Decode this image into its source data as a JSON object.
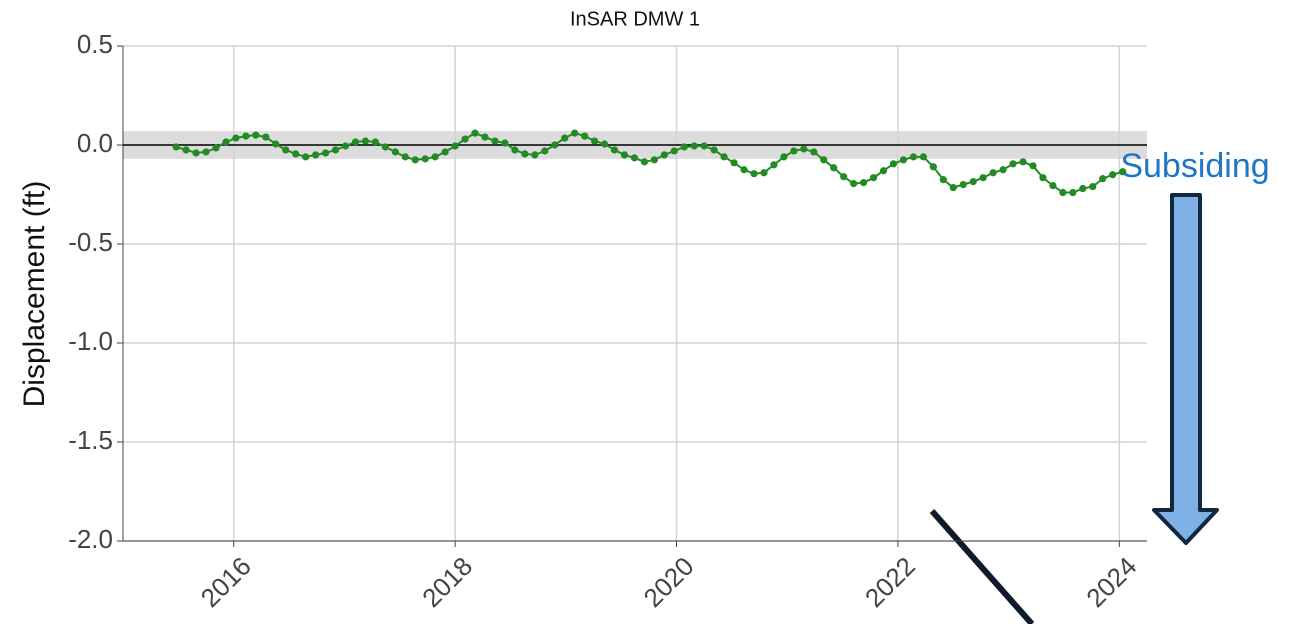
{
  "chart_data": {
    "type": "line",
    "title": "InSAR DMW 1",
    "y_label": "Displacement (ft)",
    "annotation": "Subsiding",
    "x": [
      2015.48,
      2015.57,
      2015.66,
      2015.75,
      2015.84,
      2015.93,
      2016.02,
      2016.11,
      2016.2,
      2016.29,
      2016.38,
      2016.47,
      2016.56,
      2016.65,
      2016.74,
      2016.83,
      2016.92,
      2017.01,
      2017.1,
      2017.19,
      2017.28,
      2017.37,
      2017.46,
      2017.55,
      2017.64,
      2017.73,
      2017.82,
      2017.91,
      2018.0,
      2018.09,
      2018.18,
      2018.27,
      2018.36,
      2018.45,
      2018.54,
      2018.63,
      2018.72,
      2018.81,
      2018.9,
      2018.99,
      2019.08,
      2019.17,
      2019.26,
      2019.35,
      2019.44,
      2019.53,
      2019.62,
      2019.71,
      2019.8,
      2019.89,
      2019.98,
      2020.07,
      2020.16,
      2020.25,
      2020.34,
      2020.43,
      2020.52,
      2020.61,
      2020.7,
      2020.79,
      2020.88,
      2020.97,
      2021.06,
      2021.15,
      2021.24,
      2021.33,
      2021.42,
      2021.51,
      2021.6,
      2021.69,
      2021.78,
      2021.87,
      2021.96,
      2022.05,
      2022.14,
      2022.23,
      2022.32,
      2022.41,
      2022.5,
      2022.59,
      2022.68,
      2022.77,
      2022.86,
      2022.95,
      2023.04,
      2023.13,
      2023.22,
      2023.31,
      2023.4,
      2023.49,
      2023.58,
      2023.67,
      2023.76,
      2023.85,
      2023.94,
      2024.03
    ],
    "values": [
      -0.01,
      -0.025,
      -0.04,
      -0.035,
      -0.015,
      0.015,
      0.035,
      0.045,
      0.05,
      0.04,
      0.005,
      -0.025,
      -0.045,
      -0.06,
      -0.05,
      -0.04,
      -0.025,
      -0.005,
      0.015,
      0.02,
      0.015,
      -0.01,
      -0.035,
      -0.06,
      -0.075,
      -0.07,
      -0.06,
      -0.035,
      -0.005,
      0.03,
      0.06,
      0.04,
      0.02,
      0.01,
      -0.025,
      -0.045,
      -0.05,
      -0.03,
      0.0,
      0.035,
      0.06,
      0.045,
      0.02,
      0.005,
      -0.025,
      -0.05,
      -0.065,
      -0.085,
      -0.075,
      -0.05,
      -0.03,
      -0.01,
      -0.005,
      -0.005,
      -0.025,
      -0.06,
      -0.09,
      -0.125,
      -0.145,
      -0.14,
      -0.1,
      -0.06,
      -0.03,
      -0.02,
      -0.035,
      -0.075,
      -0.115,
      -0.16,
      -0.195,
      -0.19,
      -0.165,
      -0.13,
      -0.095,
      -0.075,
      -0.06,
      -0.06,
      -0.11,
      -0.175,
      -0.215,
      -0.2,
      -0.185,
      -0.165,
      -0.14,
      -0.125,
      -0.095,
      -0.085,
      -0.105,
      -0.165,
      -0.205,
      -0.24,
      -0.24,
      -0.22,
      -0.21,
      -0.17,
      -0.15,
      -0.135
    ],
    "color": "#238b23",
    "reference_line": 0,
    "reference_band": [
      -0.07,
      0.07
    ],
    "xlim": [
      2015.0,
      2024.25
    ],
    "xticks": [
      2016,
      2018,
      2020,
      2022,
      2024
    ],
    "ylim": [
      -2.0,
      0.5
    ],
    "yticks": [
      {
        "value": -2,
        "label": "-2.0"
      },
      -1.5,
      {
        "value": -1,
        "label": "-1.0"
      },
      -0.5,
      {
        "value": 0,
        "label": "0.0"
      },
      0.5
    ],
    "grid": true
  }
}
